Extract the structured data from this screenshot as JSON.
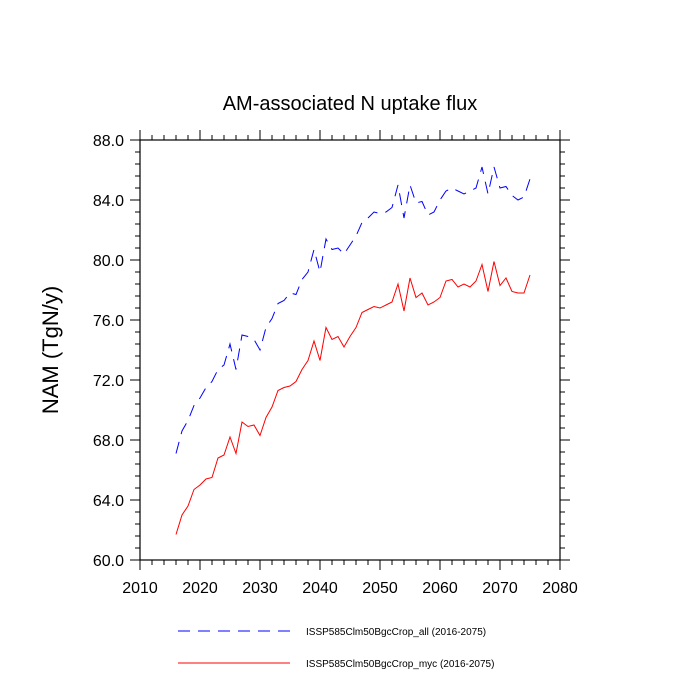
{
  "chart_data": {
    "type": "line",
    "title": "AM-associated N uptake flux",
    "ylabel": "NAM  (TgN/y)",
    "xlabel": "",
    "xlim": [
      2010,
      2080
    ],
    "ylim": [
      60,
      88
    ],
    "xticks": [
      2010,
      2020,
      2030,
      2040,
      2050,
      2060,
      2070,
      2080
    ],
    "yticks": [
      60,
      64,
      68,
      72,
      76,
      80,
      84,
      88
    ],
    "xtick_labels": [
      "2010",
      "2020",
      "2030",
      "2040",
      "2050",
      "2060",
      "2070",
      "2080"
    ],
    "ytick_labels": [
      "60.0",
      "64.0",
      "68.0",
      "72.0",
      "76.0",
      "80.0",
      "84.0",
      "88.0"
    ],
    "grid": false,
    "legend_position": "bottom",
    "x": [
      2016,
      2017,
      2018,
      2019,
      2020,
      2021,
      2022,
      2023,
      2024,
      2025,
      2026,
      2027,
      2028,
      2029,
      2030,
      2031,
      2032,
      2033,
      2034,
      2035,
      2036,
      2037,
      2038,
      2039,
      2040,
      2041,
      2042,
      2043,
      2044,
      2045,
      2046,
      2047,
      2048,
      2049,
      2050,
      2051,
      2052,
      2053,
      2054,
      2055,
      2056,
      2057,
      2058,
      2059,
      2060,
      2061,
      2062,
      2063,
      2064,
      2065,
      2066,
      2067,
      2068,
      2069,
      2070,
      2071,
      2072,
      2073,
      2074,
      2075
    ],
    "series": [
      {
        "name": "ISSP585Clm50BgcCrop_all (2016-2075)",
        "color": "#0000ff",
        "dash": "dashed",
        "values": [
          67.1,
          68.6,
          69.3,
          70.3,
          70.8,
          71.5,
          71.9,
          72.7,
          73.0,
          74.4,
          72.7,
          75.0,
          74.9,
          74.7,
          74.0,
          75.5,
          76.1,
          77.1,
          77.3,
          77.8,
          77.7,
          78.7,
          79.2,
          80.7,
          79.2,
          81.4,
          80.7,
          80.8,
          80.4,
          81.0,
          81.6,
          82.5,
          82.8,
          83.2,
          83.1,
          83.2,
          83.5,
          85.0,
          82.8,
          85.0,
          83.8,
          83.9,
          83.0,
          83.2,
          84.0,
          84.6,
          84.8,
          84.6,
          84.4,
          84.6,
          84.8,
          86.2,
          84.4,
          86.2,
          84.8,
          84.9,
          84.3,
          84.0,
          84.2,
          85.4
        ]
      },
      {
        "name": "ISSP585Clm50BgcCrop_myc (2016-2075)",
        "color": "#ff0000",
        "dash": "solid",
        "values": [
          61.7,
          63.0,
          63.6,
          64.7,
          65.0,
          65.4,
          65.5,
          66.8,
          67.0,
          68.2,
          67.1,
          69.2,
          68.9,
          69.0,
          68.3,
          69.5,
          70.2,
          71.3,
          71.5,
          71.6,
          71.9,
          72.7,
          73.3,
          74.6,
          73.3,
          75.5,
          74.7,
          74.9,
          74.2,
          74.9,
          75.5,
          76.5,
          76.7,
          76.9,
          76.8,
          77.0,
          77.2,
          78.4,
          76.6,
          78.8,
          77.5,
          77.8,
          77.0,
          77.2,
          77.5,
          78.6,
          78.7,
          78.2,
          78.4,
          78.2,
          78.6,
          79.7,
          77.9,
          79.9,
          78.3,
          78.8,
          77.9,
          77.8,
          77.8,
          79.0
        ]
      }
    ]
  }
}
